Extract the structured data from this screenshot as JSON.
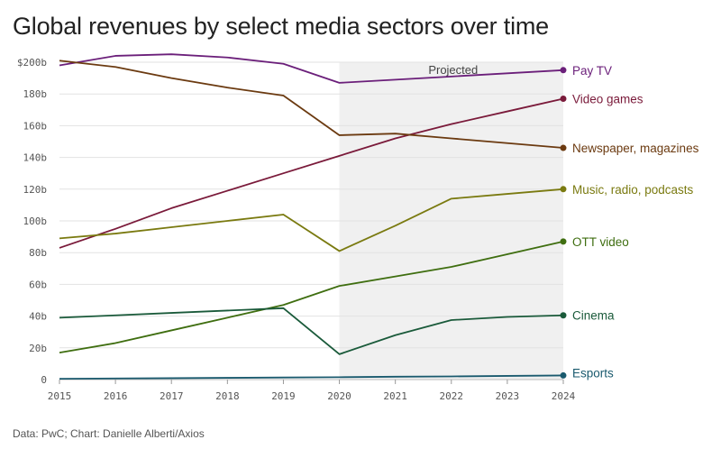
{
  "title": "Global revenues by select media sectors over time",
  "source": "Data: PwC; Chart: Danielle Alberti/Axios",
  "chart_data": {
    "type": "line",
    "title": "Global revenues by select media sectors over time",
    "x": [
      2015,
      2016,
      2017,
      2018,
      2019,
      2020,
      2021,
      2022,
      2023,
      2024
    ],
    "x_ticks": [
      "2015",
      "2016",
      "2017",
      "2018",
      "2019",
      "2020",
      "2021",
      "2022",
      "2023",
      "2024"
    ],
    "ylim": [
      0,
      200
    ],
    "y_ticks": [
      0,
      20,
      40,
      60,
      80,
      100,
      120,
      140,
      160,
      180,
      200
    ],
    "y_tick_labels": [
      "0",
      "20b",
      "40b",
      "60b",
      "80b",
      "100b",
      "120b",
      "140b",
      "160b",
      "180b",
      "$200b"
    ],
    "grid": "horizontal",
    "shaded_region": {
      "label": "Projected",
      "from": 2020,
      "to": 2024,
      "color": "#f0f0f0"
    },
    "series": [
      {
        "name": "Pay TV",
        "color": "#6b1f7a",
        "values": [
          198,
          204,
          205,
          203,
          199,
          187,
          189,
          191,
          193,
          195
        ]
      },
      {
        "name": "Video games",
        "color": "#7a1a3a",
        "values": [
          83,
          95,
          108,
          119,
          130,
          141,
          152,
          161,
          169,
          177
        ]
      },
      {
        "name": "Newspaper, magazines",
        "color": "#6b3a10",
        "values": [
          201,
          197,
          190,
          184,
          179,
          154,
          155,
          152,
          149,
          146
        ]
      },
      {
        "name": "Music, radio, podcasts",
        "color": "#7a7a10",
        "values": [
          89,
          92,
          96,
          100,
          104,
          81,
          97,
          114,
          117,
          120
        ]
      },
      {
        "name": "OTT video",
        "color": "#3f6e10",
        "values": [
          17,
          23,
          31,
          39,
          47,
          59,
          65,
          71,
          79,
          87
        ]
      },
      {
        "name": "Cinema",
        "color": "#1a5a3a",
        "values": [
          39,
          40.5,
          42,
          43.5,
          45,
          16,
          28,
          37.5,
          39.5,
          40.5
        ]
      },
      {
        "name": "Esports",
        "color": "#1a5a6e",
        "values": [
          0.5,
          0.7,
          0.9,
          1.1,
          1.3,
          1.5,
          1.8,
          2.0,
          2.3,
          2.6
        ]
      }
    ]
  }
}
